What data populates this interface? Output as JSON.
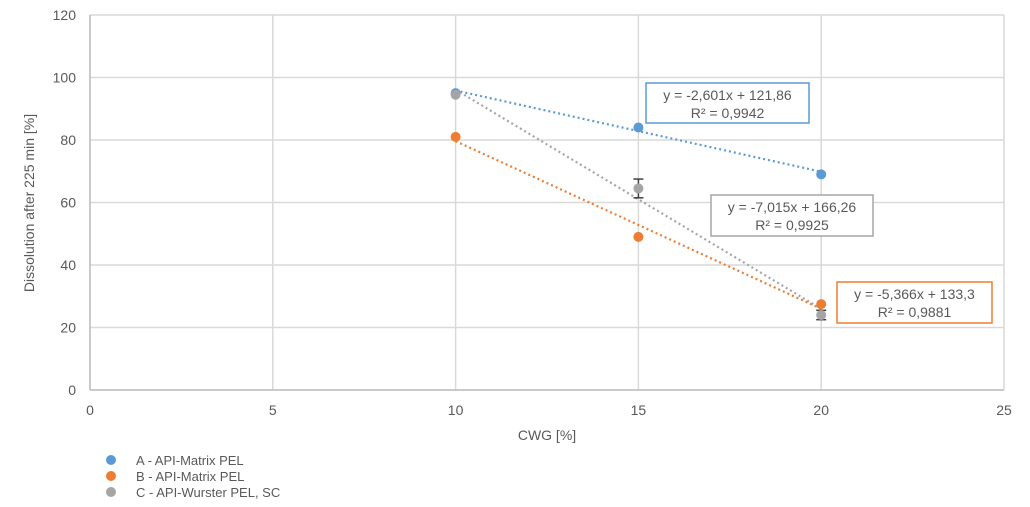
{
  "chart_data": {
    "type": "scatter",
    "title": "",
    "xlabel": "CWG [%]",
    "ylabel": "Dissolution after 225 min [%]",
    "xlim": [
      0,
      25
    ],
    "ylim": [
      0,
      120
    ],
    "x_ticks": [
      0,
      5,
      10,
      15,
      20,
      25
    ],
    "y_ticks": [
      0,
      20,
      40,
      60,
      80,
      100,
      120
    ],
    "grid": true,
    "legend_position": "bottom-left",
    "series": [
      {
        "name": "A - API-Matrix PEL",
        "color": "#5B9BD5",
        "x": [
          10,
          15,
          20
        ],
        "y": [
          95,
          84,
          69
        ],
        "trendline": {
          "type": "linear",
          "equation": "y = -2,601x + 121,86",
          "r2": "R² = 0,9942",
          "slope": -2.601,
          "intercept": 121.86
        }
      },
      {
        "name": "B - API-Matrix PEL",
        "color": "#ED7D31",
        "x": [
          10,
          15,
          20
        ],
        "y": [
          81,
          49,
          27.5
        ],
        "trendline": {
          "type": "linear",
          "equation": "y = -5,366x + 133,3",
          "r2": "R² = 0,9881",
          "slope": -5.366,
          "intercept": 133.3
        }
      },
      {
        "name": "C - API-Wurster PEL, SC",
        "color": "#A5A5A5",
        "x": [
          10,
          15,
          20
        ],
        "y": [
          94.5,
          64.5,
          24
        ],
        "error": [
          0.5,
          3,
          1.5
        ],
        "trendline": {
          "type": "linear",
          "equation": "y = -7,015x + 166,26",
          "r2": "R² = 0,9925",
          "slope": -7.015,
          "intercept": 166.26
        }
      }
    ]
  },
  "legend": {
    "items": [
      {
        "label": "A - API-Matrix PEL",
        "color": "#5B9BD5"
      },
      {
        "label": "B - API-Matrix PEL",
        "color": "#ED7D31"
      },
      {
        "label": "C - API-Wurster PEL, SC",
        "color": "#A5A5A5"
      }
    ]
  }
}
